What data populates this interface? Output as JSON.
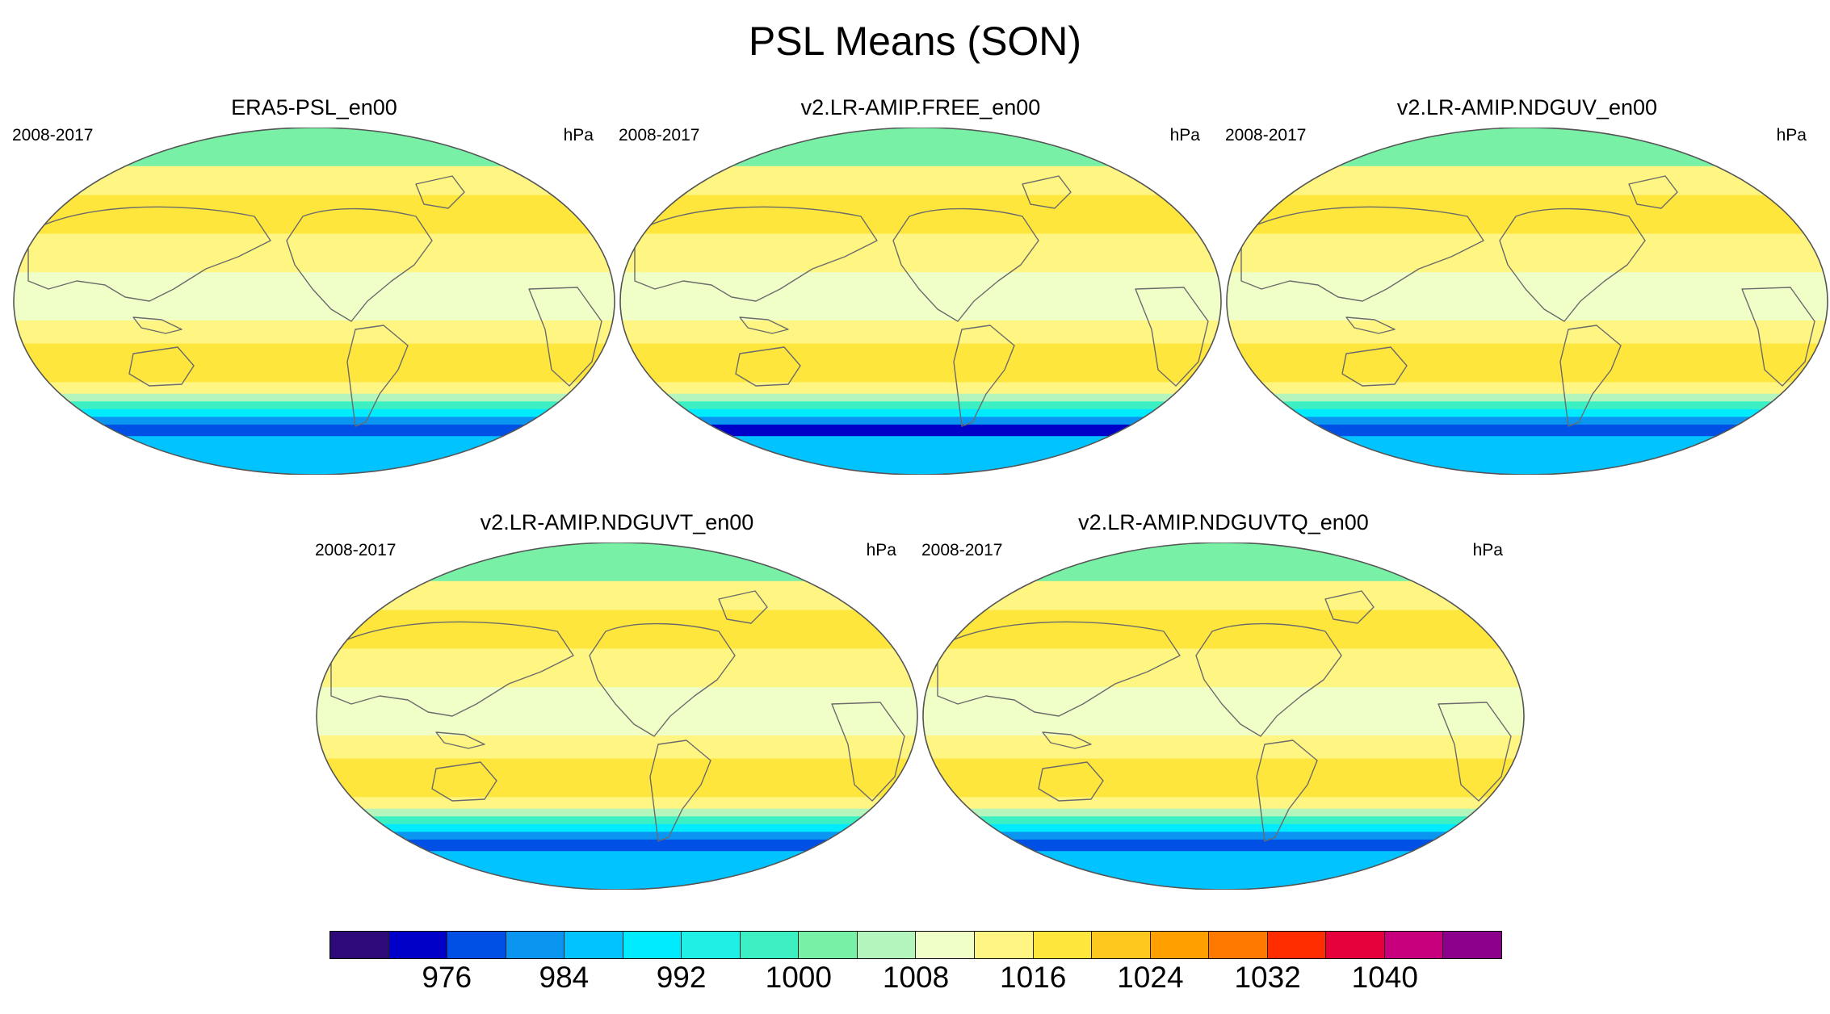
{
  "title": "PSL Means (SON)",
  "panels": [
    {
      "name": "ERA5-PSL_en00",
      "period": "2008-2017",
      "units": "hPa",
      "variant": "era5"
    },
    {
      "name": "v2.LR-AMIP.FREE_en00",
      "period": "2008-2017",
      "units": "hPa",
      "variant": "free"
    },
    {
      "name": "v2.LR-AMIP.NDGUV_en00",
      "period": "2008-2017",
      "units": "hPa",
      "variant": "nudged"
    },
    {
      "name": "v2.LR-AMIP.NDGUVT_en00",
      "period": "2008-2017",
      "units": "hPa",
      "variant": "nudged"
    },
    {
      "name": "v2.LR-AMIP.NDGUVTQ_en00",
      "period": "2008-2017",
      "units": "hPa",
      "variant": "nudged"
    }
  ],
  "colorbar": {
    "colors": [
      "#2e0a78",
      "#0000c8",
      "#0050e6",
      "#0a96f0",
      "#00c3ff",
      "#00ebff",
      "#1ef0e6",
      "#3cf0c3",
      "#78f0a5",
      "#b4f5be",
      "#f0ffc8",
      "#fff582",
      "#ffe63c",
      "#ffc81e",
      "#ffa000",
      "#ff7800",
      "#ff2d00",
      "#e6003c",
      "#c8007d",
      "#8c008c"
    ],
    "labels": [
      "976",
      "984",
      "992",
      "1000",
      "1008",
      "1016",
      "1024",
      "1032",
      "1040"
    ]
  },
  "chart_data": {
    "type": "heatmap",
    "title": "PSL Means (SON)",
    "variable": "PSL",
    "units": "hPa",
    "period": "2008-2017",
    "levels": [
      972,
      976,
      980,
      984,
      988,
      992,
      996,
      1000,
      1004,
      1008,
      1012,
      1016,
      1020,
      1024,
      1028,
      1032,
      1036,
      1040,
      1044
    ],
    "tick_labels": [
      976,
      984,
      992,
      1000,
      1008,
      1016,
      1024,
      1032,
      1040
    ],
    "datasets": [
      "ERA5-PSL_en00",
      "v2.LR-AMIP.FREE_en00",
      "v2.LR-AMIP.NDGUV_en00",
      "v2.LR-AMIP.NDGUVT_en00",
      "v2.LR-AMIP.NDGUVTQ_en00"
    ]
  }
}
